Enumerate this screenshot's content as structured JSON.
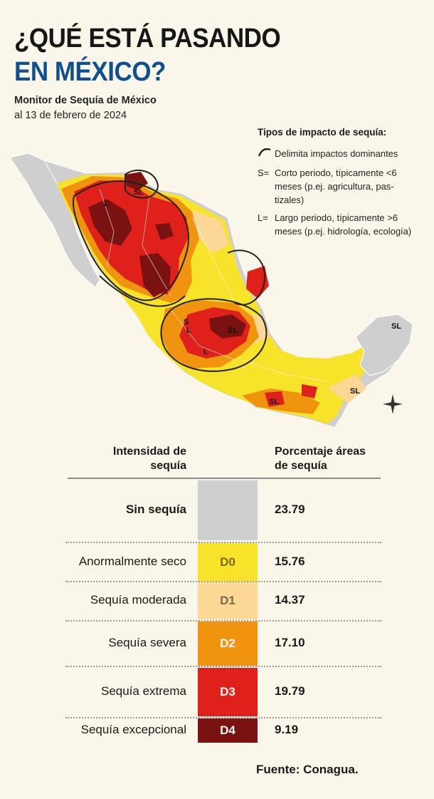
{
  "header": {
    "title_line1": "¿QUÉ ESTÁ PASANDO",
    "title_line2": "EN MÉXICO?",
    "subtitle": "Monitor de Sequía de México",
    "date": "al 13 de febrero de 2024"
  },
  "map": {
    "labels": [
      "SL",
      "L",
      "S",
      "SL",
      "SL",
      "SL",
      "L",
      "L",
      "SL"
    ],
    "colors": {
      "no_drought": "#cfcfcf",
      "D0": "#f6e32a",
      "D1": "#fbd896",
      "D2": "#f0940f",
      "D3": "#e0201b",
      "D4": "#7a1212"
    }
  },
  "impact_legend": {
    "title": "Tipos de impacto de sequía:",
    "items": [
      {
        "symbol": "~",
        "text": "Delimita impactos dominantes"
      },
      {
        "symbol": "S=",
        "text": "Corto periodo, típicamente <6 meses (p.ej. agricultura, pas-tizales)"
      },
      {
        "symbol": "L=",
        "text": "Largo periodo, típicamente >6 meses (p.ej. hidrología, ecología)"
      }
    ]
  },
  "table": {
    "header_left": "Intensidad de sequía",
    "header_right": "Porcentaje áreas de sequía",
    "rows": [
      {
        "label": "Sin sequía",
        "code": "",
        "value": "23.79",
        "color": "#cfcfcf",
        "text_color": "#cfcfcf"
      },
      {
        "label": "Anormalmente seco",
        "code": "D0",
        "value": "15.76",
        "color": "#f6e32a",
        "text_color": "#7a6a10"
      },
      {
        "label": "Sequía moderada",
        "code": "D1",
        "value": "14.37",
        "color": "#fbd896",
        "text_color": "#7a6a4a"
      },
      {
        "label": "Sequía severa",
        "code": "D2",
        "value": "17.10",
        "color": "#f0940f",
        "text_color": "#ffffff"
      },
      {
        "label": "Sequía extrema",
        "code": "D3",
        "value": "19.79",
        "color": "#e0201b",
        "text_color": "#ffffff"
      },
      {
        "label": "Sequía excepcional",
        "code": "D4",
        "value": "9.19",
        "color": "#7a1212",
        "text_color": "#ffffff"
      }
    ]
  },
  "source": "Fuente: Conagua."
}
